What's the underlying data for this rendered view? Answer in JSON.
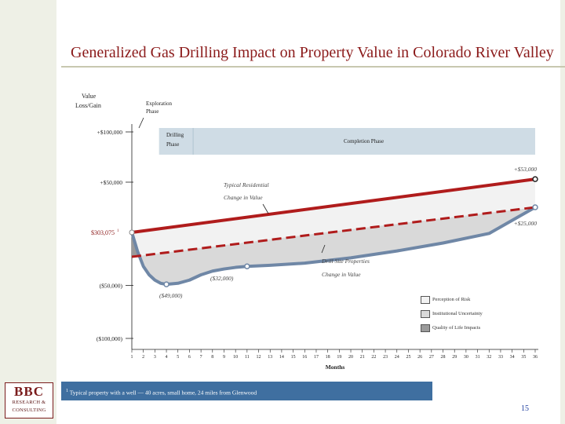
{
  "title": "Generalized Gas Drilling Impact on Property Value in Colorado River Valley",
  "logo": {
    "mark": "BBC",
    "line1": "RESEARCH &",
    "line2": "CONSULTING"
  },
  "page_number": "15",
  "footnote": {
    "marker": "1",
    "text": "Typical property with a well — 40 acres, small home, 24 miles from Glenwood"
  },
  "colors": {
    "typical_line": "#b01c1c",
    "drill_site_line": "#6f87a6",
    "dashed_line": "#b01c1c",
    "perception_fill": "#f2f2f2",
    "institutional_fill": "#d9d9d9",
    "quality_fill": "#9a9a9a",
    "phase_band": "#cfdce5"
  },
  "chart_data": {
    "type": "line",
    "title": "Generalized Gas Drilling Impact on Property Value in Colorado River Valley",
    "ylabel": "Value Loss/Gain",
    "xlabel": "Months",
    "x": [
      1,
      2,
      3,
      4,
      5,
      6,
      7,
      8,
      9,
      10,
      11,
      12,
      13,
      14,
      15,
      16,
      17,
      18,
      19,
      20,
      21,
      22,
      23,
      24,
      25,
      26,
      27,
      28,
      29,
      30,
      31,
      32,
      33,
      34,
      35,
      36
    ],
    "ylim": [
      -100000,
      100000
    ],
    "y_ticks": [
      {
        "value": 100000,
        "label": "+$100,000"
      },
      {
        "value": 50000,
        "label": "+$50,000"
      },
      {
        "value": 0,
        "label": "$303,075"
      },
      {
        "value": -50000,
        "label": "($50,000)"
      },
      {
        "value": -100000,
        "label": "($100,000)"
      }
    ],
    "baseline_superscript": "1",
    "phases": [
      {
        "name": "Exploration Phase",
        "line1": "Exploration",
        "line2": "Phase",
        "start": 1,
        "end": 2
      },
      {
        "name": "Drilling Phase",
        "line1": "Drilling",
        "line2": "Phase",
        "start": 2,
        "end": 7
      },
      {
        "name": "Completion Phase",
        "line1": "Completion Phase",
        "line2": "",
        "start": 7,
        "end": 36
      }
    ],
    "series": [
      {
        "name": "Typical Residential Change in Value",
        "label_line1": "Typical Residential",
        "label_line2": "Change in Value",
        "points": [
          [
            1,
            0
          ],
          [
            36,
            53000
          ]
        ]
      },
      {
        "name": "Drill Site Properties Change in Value",
        "label_line1": "Drill Site Properties",
        "label_line2": "Change in Value",
        "points": [
          [
            1,
            0
          ],
          [
            1.5,
            -18000
          ],
          [
            2,
            -32000
          ],
          [
            2.5,
            -40000
          ],
          [
            3,
            -45000
          ],
          [
            3.5,
            -48000
          ],
          [
            4,
            -49000
          ],
          [
            5,
            -48000
          ],
          [
            6,
            -45000
          ],
          [
            7,
            -40000
          ],
          [
            8,
            -36500
          ],
          [
            9,
            -34500
          ],
          [
            10,
            -33000
          ],
          [
            11,
            -32000
          ],
          [
            13,
            -31000
          ],
          [
            16,
            -29000
          ],
          [
            20,
            -24000
          ],
          [
            24,
            -17500
          ],
          [
            28,
            -10000
          ],
          [
            32,
            -1000
          ],
          [
            36,
            25000
          ]
        ]
      },
      {
        "name": "Dashed reference",
        "points": [
          [
            1,
            -23000
          ],
          [
            36,
            25000
          ]
        ]
      }
    ],
    "point_labels": [
      {
        "text": "+$53,000",
        "x": 36,
        "y": 53000
      },
      {
        "text": "+$25,000",
        "x": 36,
        "y": 25000
      },
      {
        "text": "($32,000)",
        "x": 11,
        "y": -32000
      },
      {
        "text": "($49,000)",
        "x": 4,
        "y": -49000
      }
    ],
    "legend": [
      {
        "label": "Perception of Risk",
        "swatch": "perception"
      },
      {
        "label": "Institutional Uncertainty",
        "swatch": "institutional"
      },
      {
        "label": "Quality of Life Impacts",
        "swatch": "quality"
      }
    ]
  }
}
